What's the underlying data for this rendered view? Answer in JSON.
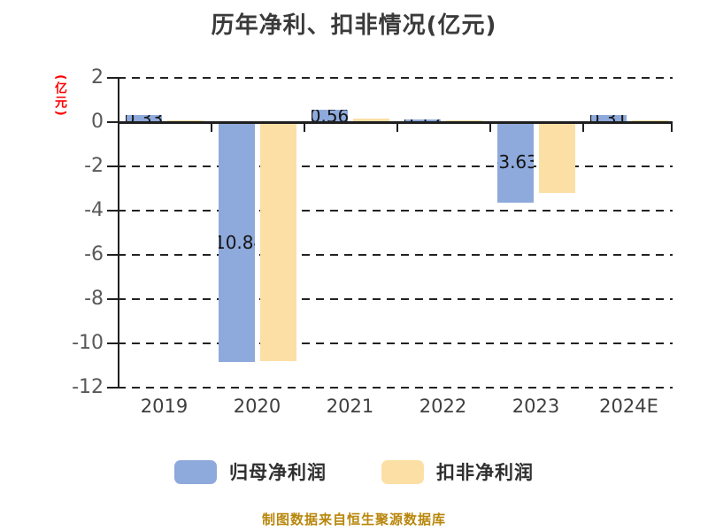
{
  "title": "历年净利、扣非情况(亿元)",
  "y_axis_label": "(亿元)",
  "footer": "制图数据来自恒生聚源数据库",
  "legend": [
    {
      "label": "归母净利润",
      "color": "#8EA9DB"
    },
    {
      "label": "扣非净利润",
      "color": "#FCDFA4"
    }
  ],
  "colors": {
    "blue_series": "#8EA9DB",
    "yellow_series": "#FCDFA4",
    "axis_line": "#1f1f1f",
    "tick_text": "#595959",
    "title_text": "#3a3a3a",
    "y_label_red": "#ff0000",
    "footer_gold": "#b8860b"
  },
  "chart_data": {
    "type": "bar",
    "title": "历年净利、扣非情况(亿元)",
    "categories": [
      "2019",
      "2020",
      "2021",
      "2022",
      "2023",
      "2024E"
    ],
    "series": [
      {
        "name": "归母净利润",
        "color": "#8EA9DB",
        "values": [
          0.33,
          -10.84,
          0.56,
          0.12,
          -3.63,
          0.31
        ],
        "labels": [
          "0.33",
          "-10.84",
          "0.56",
          "0.12",
          "-3.63",
          "0.31"
        ]
      },
      {
        "name": "扣非净利润",
        "color": "#FCDFA4",
        "values": [
          0.1,
          -10.8,
          0.15,
          0.1,
          -3.2,
          0.05
        ],
        "labels": [
          "",
          "",
          "",
          "",
          "",
          ""
        ]
      }
    ],
    "xlabel": "",
    "ylabel": "(亿元)",
    "ylim": [
      -12,
      2
    ],
    "yticks": [
      2,
      0,
      -2,
      -4,
      -6,
      -8,
      -10,
      -12
    ],
    "grid": "dashed-horizontal",
    "legend_position": "bottom"
  }
}
